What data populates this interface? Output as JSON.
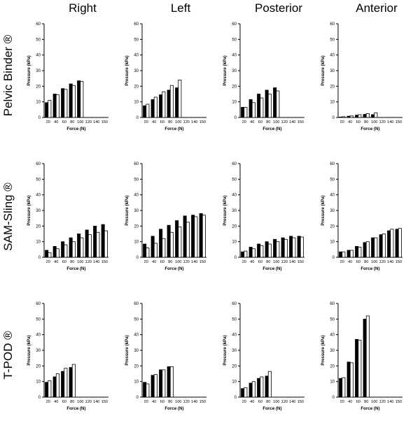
{
  "column_titles": [
    "Right",
    "Left",
    "Posterior",
    "Anterior"
  ],
  "row_titles": [
    "Pelvic Binder ®",
    "SAM-Sling ®",
    "T-POD ®"
  ],
  "chart_data": [
    {
      "type": "bar",
      "row": "Pelvic Binder ®",
      "col": "Right",
      "xlabel": "Force (N)",
      "ylabel": "Pressure (kPa)",
      "categories": [
        "20",
        "40",
        "60",
        "80",
        "100",
        "120",
        "140",
        "150"
      ],
      "ylim": [
        0,
        60
      ],
      "series": [
        {
          "values": [
            9.5,
            15,
            18.5,
            21.5,
            23.5,
            null,
            null,
            null
          ]
        },
        {
          "values": [
            11,
            14.5,
            18,
            20.5,
            23,
            null,
            null,
            null
          ]
        }
      ]
    },
    {
      "type": "bar",
      "row": "Pelvic Binder ®",
      "col": "Left",
      "xlabel": "Force (N)",
      "ylabel": "Pressure (kPa)",
      "categories": [
        "20",
        "40",
        "60",
        "80",
        "100",
        "120",
        "140",
        "150"
      ],
      "ylim": [
        0,
        60
      ],
      "series": [
        {
          "values": [
            7.5,
            11.5,
            14.5,
            17.5,
            19,
            null,
            null,
            null
          ]
        },
        {
          "values": [
            8.5,
            13,
            16.5,
            20.5,
            24,
            null,
            null,
            null
          ]
        }
      ]
    },
    {
      "type": "bar",
      "row": "Pelvic Binder ®",
      "col": "Posterior",
      "xlabel": "Force (N)",
      "ylabel": "Pressure (kPa)",
      "categories": [
        "20",
        "40",
        "60",
        "80",
        "100",
        "120",
        "140",
        "150"
      ],
      "ylim": [
        0,
        60
      ],
      "series": [
        {
          "values": [
            6.5,
            11.5,
            15,
            17.5,
            19,
            null,
            null,
            null
          ]
        },
        {
          "values": [
            6.5,
            9.5,
            12.5,
            15,
            17,
            null,
            null,
            null
          ]
        }
      ]
    },
    {
      "type": "bar",
      "row": "Pelvic Binder ®",
      "col": "Anterior",
      "xlabel": "Force (N)",
      "ylabel": "Pressure (kPa)",
      "categories": [
        "20",
        "40",
        "60",
        "80",
        "100",
        "120",
        "140",
        "150"
      ],
      "ylim": [
        0,
        60
      ],
      "series": [
        {
          "values": [
            0.3,
            0.8,
            1.5,
            2,
            1.8,
            null,
            null,
            null
          ]
        },
        {
          "values": [
            0.5,
            1,
            1.8,
            2.5,
            3,
            null,
            null,
            null
          ]
        }
      ]
    },
    {
      "type": "bar",
      "row": "SAM-Sling ®",
      "col": "Right",
      "xlabel": "Force (N)",
      "ylabel": "Pressure (kPa)",
      "categories": [
        "20",
        "40",
        "60",
        "80",
        "100",
        "120",
        "140",
        "150"
      ],
      "ylim": [
        0,
        60
      ],
      "series": [
        {
          "values": [
            4.5,
            7,
            10,
            12.5,
            15,
            17.5,
            20,
            21
          ]
        },
        {
          "values": [
            3,
            5.5,
            8,
            10,
            12.5,
            14.5,
            16,
            17
          ]
        }
      ]
    },
    {
      "type": "bar",
      "row": "SAM-Sling ®",
      "col": "Left",
      "xlabel": "Force (N)",
      "ylabel": "Pressure (kPa)",
      "categories": [
        "20",
        "40",
        "60",
        "80",
        "100",
        "120",
        "140",
        "150"
      ],
      "ylim": [
        0,
        60
      ],
      "series": [
        {
          "values": [
            8.5,
            13.5,
            18,
            20.5,
            23.5,
            26.5,
            27,
            28
          ]
        },
        {
          "values": [
            6,
            9,
            12,
            16,
            19.5,
            22.5,
            26,
            27
          ]
        }
      ]
    },
    {
      "type": "bar",
      "row": "SAM-Sling ®",
      "col": "Posterior",
      "xlabel": "Force (N)",
      "ylabel": "Pressure (kPa)",
      "categories": [
        "20",
        "40",
        "60",
        "80",
        "100",
        "120",
        "140",
        "150"
      ],
      "ylim": [
        0,
        60
      ],
      "series": [
        {
          "values": [
            3.5,
            6.5,
            8.5,
            10,
            11.5,
            12.5,
            13.5,
            13.5
          ]
        },
        {
          "values": [
            4,
            5.5,
            7.5,
            8.5,
            10,
            11.5,
            12.5,
            13
          ]
        }
      ]
    },
    {
      "type": "bar",
      "row": "SAM-Sling ®",
      "col": "Anterior",
      "xlabel": "Force (N)",
      "ylabel": "Pressure (kPa)",
      "categories": [
        "20",
        "40",
        "60",
        "80",
        "100",
        "120",
        "140",
        "150"
      ],
      "ylim": [
        0,
        60
      ],
      "series": [
        {
          "values": [
            3.5,
            4.5,
            7,
            9.5,
            12.5,
            14.5,
            17,
            18
          ]
        },
        {
          "values": [
            3.5,
            4.5,
            6.5,
            10,
            12.5,
            15,
            18,
            18.5
          ]
        }
      ]
    },
    {
      "type": "bar",
      "row": "T-POD ®",
      "col": "Right",
      "xlabel": "Force (N)",
      "ylabel": "Pressure (kPa)",
      "categories": [
        "20",
        "40",
        "60",
        "80",
        "100",
        "120",
        "140",
        "150"
      ],
      "ylim": [
        0,
        60
      ],
      "series": [
        {
          "values": [
            9.5,
            13,
            16.5,
            19,
            null,
            null,
            null,
            null
          ]
        },
        {
          "values": [
            10.5,
            15,
            18.5,
            21,
            null,
            null,
            null,
            null
          ]
        }
      ]
    },
    {
      "type": "bar",
      "row": "T-POD ®",
      "col": "Left",
      "xlabel": "Force (N)",
      "ylabel": "Pressure (kPa)",
      "categories": [
        "20",
        "40",
        "60",
        "80",
        "100",
        "120",
        "140",
        "150"
      ],
      "ylim": [
        0,
        60
      ],
      "series": [
        {
          "values": [
            9.5,
            14,
            17.5,
            19.5,
            null,
            null,
            null,
            null
          ]
        },
        {
          "values": [
            8.5,
            14.5,
            17.5,
            19.5,
            null,
            null,
            null,
            null
          ]
        }
      ]
    },
    {
      "type": "bar",
      "row": "T-POD ®",
      "col": "Posterior",
      "xlabel": "Force (N)",
      "ylabel": "Pressure (kPa)",
      "categories": [
        "20",
        "40",
        "60",
        "80",
        "100",
        "120",
        "140",
        "150"
      ],
      "ylim": [
        0,
        60
      ],
      "series": [
        {
          "values": [
            5.5,
            9,
            12,
            13.5,
            null,
            null,
            null,
            null
          ]
        },
        {
          "values": [
            6,
            10,
            13,
            16.5,
            null,
            null,
            null,
            null
          ]
        }
      ]
    },
    {
      "type": "bar",
      "row": "T-POD ®",
      "col": "Anterior",
      "xlabel": "Force (N)",
      "ylabel": "Pressure (kPa)",
      "categories": [
        "20",
        "40",
        "60",
        "80",
        "100",
        "120",
        "140",
        "150"
      ],
      "ylim": [
        0,
        60
      ],
      "series": [
        {
          "values": [
            12,
            22.5,
            37,
            50,
            null,
            null,
            null,
            null
          ]
        },
        {
          "values": [
            12.5,
            22,
            36.5,
            52,
            null,
            null,
            null,
            null
          ]
        }
      ]
    }
  ],
  "yticks": [
    0,
    10,
    20,
    30,
    40,
    50,
    60
  ],
  "colors": {
    "series_1_fill": "#000000",
    "series_2_fill": "#ffffff",
    "stroke": "#000000"
  }
}
